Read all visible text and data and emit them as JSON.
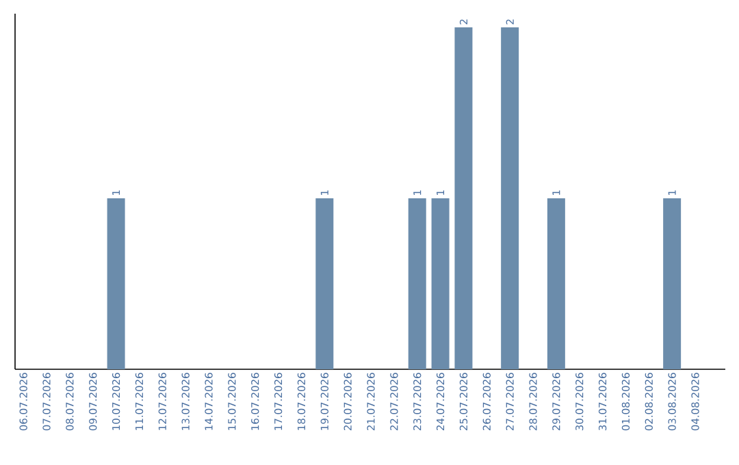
{
  "chart_data": {
    "type": "bar",
    "categories": [
      "06.07.2026",
      "07.07.2026",
      "08.07.2026",
      "09.07.2026",
      "10.07.2026",
      "11.07.2026",
      "12.07.2026",
      "13.07.2026",
      "14.07.2026",
      "15.07.2026",
      "16.07.2026",
      "17.07.2026",
      "18.07.2026",
      "19.07.2026",
      "20.07.2026",
      "21.07.2026",
      "22.07.2026",
      "23.07.2026",
      "24.07.2026",
      "25.07.2026",
      "26.07.2026",
      "27.07.2026",
      "28.07.2026",
      "29.07.2026",
      "30.07.2026",
      "31.07.2026",
      "01.08.2026",
      "02.08.2026",
      "03.08.2026",
      "04.08.2026"
    ],
    "values": [
      0,
      0,
      0,
      0,
      1,
      0,
      0,
      0,
      0,
      0,
      0,
      0,
      0,
      1,
      0,
      0,
      0,
      1,
      1,
      2,
      0,
      2,
      0,
      1,
      0,
      0,
      0,
      0,
      1,
      0
    ],
    "value_labels": [
      null,
      null,
      null,
      null,
      "1",
      null,
      null,
      null,
      null,
      null,
      null,
      null,
      null,
      "1",
      null,
      null,
      null,
      "1",
      "1",
      "2",
      null,
      "2",
      null,
      "1",
      null,
      null,
      null,
      null,
      "1",
      null
    ],
    "color": "#6b8cab",
    "ylim": [
      0,
      2
    ],
    "tick_labels": "x",
    "grid": false
  }
}
